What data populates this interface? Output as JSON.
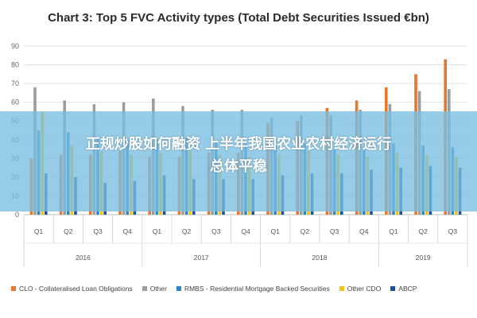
{
  "chart_data": {
    "type": "bar",
    "title": "Chart 3: Top 5 FVC Activity types (Total Debt Securities Issued €bn)",
    "xlabel": "",
    "ylabel": "",
    "ylim": [
      0,
      90
    ],
    "yticks": [
      "0",
      "10",
      "20",
      "30",
      "40",
      "50",
      "60",
      "70",
      "80",
      "90"
    ],
    "grid": true,
    "legend_position": "bottom",
    "categories": [
      "Q1",
      "Q2",
      "Q3",
      "Q4",
      "Q1",
      "Q2",
      "Q3",
      "Q4",
      "Q1",
      "Q2",
      "Q3",
      "Q4",
      "Q1",
      "Q2",
      "Q3"
    ],
    "years": [
      {
        "label": "2016",
        "span": 4
      },
      {
        "label": "2017",
        "span": 4
      },
      {
        "label": "2018",
        "span": 4
      },
      {
        "label": "2019",
        "span": 3
      }
    ],
    "series": [
      {
        "name": "CLO - Collateralised Loan Obligations",
        "color": "#e8762c",
        "values": [
          30,
          32,
          32,
          34,
          31,
          31,
          33,
          33,
          49,
          50,
          57,
          61,
          68,
          75,
          83
        ]
      },
      {
        "name": "Other",
        "color": "#9d9d9d",
        "values": [
          68,
          61,
          59,
          60,
          62,
          58,
          56,
          56,
          52,
          53,
          53,
          56,
          59,
          66,
          67
        ]
      },
      {
        "name": "RMBS - Residential Mortgage Backed Securities",
        "color": "#2e86c1",
        "values": [
          45,
          44,
          41,
          40,
          40,
          41,
          39,
          38,
          37,
          38,
          35,
          35,
          38,
          37,
          36
        ]
      },
      {
        "name": "Other CDO",
        "color": "#f0c419",
        "values": [
          55,
          37,
          34,
          32,
          33,
          34,
          32,
          31,
          32,
          34,
          32,
          31,
          33,
          32,
          31
        ]
      },
      {
        "name": "ABCP",
        "color": "#1f4e9c",
        "values": [
          22,
          20,
          17,
          18,
          21,
          19,
          19,
          19,
          21,
          22,
          22,
          24,
          25,
          26,
          25
        ]
      }
    ]
  },
  "overlay": {
    "banner_line1": "正规炒股如何融资 上半年我国农业农村经济运行",
    "banner_line2": "总体平稳"
  }
}
